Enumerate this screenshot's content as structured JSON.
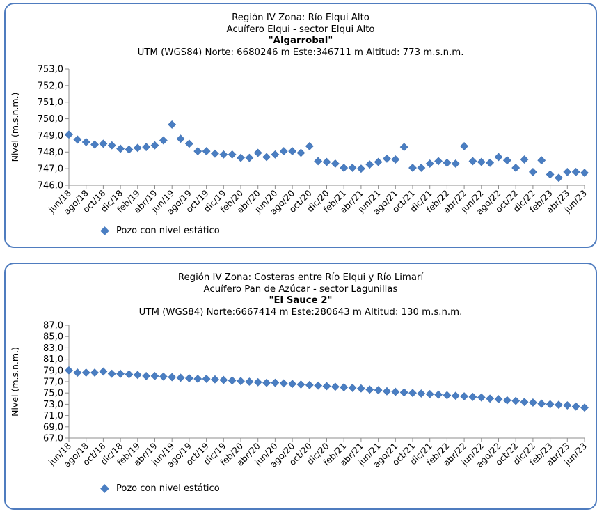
{
  "chart_data": [
    {
      "type": "scatter",
      "title_lines": [
        "Región IV  Zona: Río Elqui Alto",
        "Acuífero Elqui - sector Elqui Alto"
      ],
      "well_name": "\"Algarrobal\"",
      "utm_line": "UTM (WGS84) Norte: 6680246 m    Este:346711 m    Altitud: 773 m.s.n.m.",
      "ylabel": "Nivel (m.s.n.m.)",
      "ylim": [
        746.0,
        753.0
      ],
      "yticks": [
        "753,0",
        "752,0",
        "751,0",
        "750,0",
        "749,0",
        "748,0",
        "747,0",
        "746,0"
      ],
      "xtick_labels": [
        "jun/18",
        "ago/18",
        "oct/18",
        "dic/18",
        "feb/19",
        "abr/19",
        "jun/19",
        "ago/19",
        "oct/19",
        "dic/19",
        "feb/20",
        "abr/20",
        "jun/20",
        "ago/20",
        "oct/20",
        "dic/20",
        "feb/21",
        "abr/21",
        "jun/21",
        "ago/21",
        "oct/21",
        "dic/21",
        "feb/22",
        "abr/22",
        "jun/22",
        "ago/22",
        "oct/22",
        "dic/22",
        "feb/23",
        "abr/23",
        "jun/23"
      ],
      "series": [
        {
          "name": "Pozo con nivel estático",
          "color": "#4a7ec2",
          "values": [
            749.05,
            748.75,
            748.6,
            748.45,
            748.5,
            748.4,
            748.2,
            748.15,
            748.25,
            748.3,
            748.4,
            748.7,
            749.65,
            748.8,
            748.5,
            748.05,
            748.05,
            747.9,
            747.85,
            747.85,
            747.65,
            747.65,
            747.95,
            747.7,
            747.85,
            748.05,
            748.05,
            747.95,
            748.35,
            747.45,
            747.4,
            747.3,
            747.05,
            747.05,
            747.0,
            747.25,
            747.4,
            747.6,
            747.55,
            748.3,
            747.05,
            747.05,
            747.3,
            747.45,
            747.35,
            747.3,
            748.35,
            747.45,
            747.4,
            747.35,
            747.7,
            747.5,
            747.05,
            747.55,
            746.8,
            747.5,
            746.65,
            746.45,
            746.8,
            746.8,
            746.75
          ]
        }
      ],
      "legend": "bottom-left"
    },
    {
      "type": "scatter",
      "title_lines": [
        "Región IV  Zona: Costeras entre Río Elqui y Río Limarí",
        "Acuífero Pan de Azúcar - sector Lagunillas"
      ],
      "well_name": "\"El Sauce 2\"",
      "utm_line": "UTM (WGS84) Norte:6667414 m    Este:280643 m    Altitud: 130 m.s.n.m.",
      "ylabel": "Nivel (m.s.n.m.)",
      "ylim": [
        67.0,
        87.0
      ],
      "yticks": [
        "87,0",
        "85,0",
        "83,0",
        "81,0",
        "79,0",
        "77,0",
        "75,0",
        "73,0",
        "71,0",
        "69,0",
        "67,0"
      ],
      "xtick_labels": [
        "jun/18",
        "ago/18",
        "oct/18",
        "dic/18",
        "feb/19",
        "abr/19",
        "jun/19",
        "ago/19",
        "oct/19",
        "dic/19",
        "feb/20",
        "abr/20",
        "jun/20",
        "ago/20",
        "oct/20",
        "dic/20",
        "feb/21",
        "abr/21",
        "jun/21",
        "ago/21",
        "oct/21",
        "dic/21",
        "feb/22",
        "abr/22",
        "jun/22",
        "ago/22",
        "oct/22",
        "dic/22",
        "feb/23",
        "abr/23",
        "jun/23"
      ],
      "series": [
        {
          "name": "Pozo con nivel estático",
          "color": "#4a7ec2",
          "values": [
            79.0,
            78.6,
            78.6,
            78.6,
            78.8,
            78.4,
            78.4,
            78.3,
            78.2,
            78.0,
            78.0,
            77.9,
            77.8,
            77.7,
            77.6,
            77.5,
            77.5,
            77.4,
            77.3,
            77.2,
            77.1,
            77.0,
            76.9,
            76.8,
            76.8,
            76.7,
            76.6,
            76.5,
            76.4,
            76.3,
            76.2,
            76.1,
            76.0,
            75.9,
            75.8,
            75.6,
            75.5,
            75.3,
            75.2,
            75.1,
            75.0,
            74.9,
            74.8,
            74.7,
            74.6,
            74.5,
            74.4,
            74.3,
            74.2,
            74.0,
            73.9,
            73.7,
            73.6,
            73.4,
            73.3,
            73.1,
            73.0,
            72.9,
            72.8,
            72.6,
            72.4
          ]
        }
      ],
      "legend": "bottom-left"
    }
  ]
}
